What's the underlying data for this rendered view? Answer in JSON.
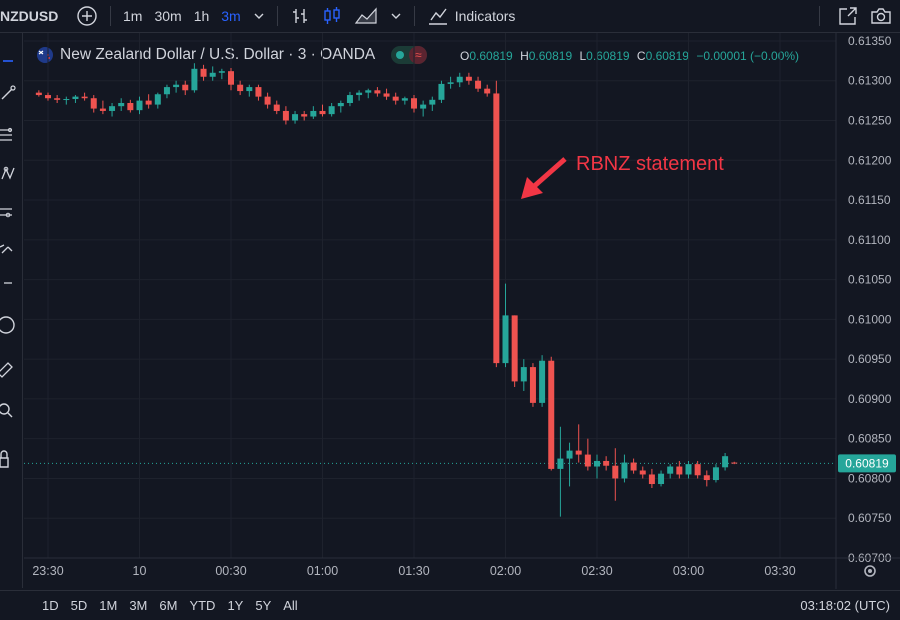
{
  "toolbar": {
    "symbol": "NZDUSD",
    "intervals": [
      "1m",
      "30m",
      "1h",
      "3m"
    ],
    "active_interval": "3m",
    "indicators_label": "Indicators"
  },
  "legend": {
    "title": "New Zealand Dollar / U.S. Dollar · 3 · OANDA",
    "o_label": "O",
    "o_value": "0.60819",
    "h_label": "H",
    "h_value": "0.60819",
    "l_label": "L",
    "l_value": "0.60819",
    "c_label": "C",
    "c_value": "0.60819",
    "change": "−0.00001 (−0.00%)"
  },
  "annotation": {
    "text": "RBNZ statement",
    "color": "#f23645"
  },
  "bottom": {
    "ranges": [
      "1D",
      "5D",
      "1M",
      "3M",
      "6M",
      "YTD",
      "1Y",
      "5Y",
      "All"
    ],
    "clock": "03:18:02 (UTC)"
  },
  "colors": {
    "up": "#26a69a",
    "down": "#ef5350",
    "background": "#131722",
    "grid": "#1e222d",
    "price_label_bg": "#26a69a",
    "annotation": "#f23645",
    "active": "#2962ff"
  },
  "chart_data": {
    "type": "candlestick",
    "interval_minutes": 3,
    "ylim": [
      0.607,
      0.6136
    ],
    "y_ticks": [
      "0.61350",
      "0.61300",
      "0.61250",
      "0.61200",
      "0.61150",
      "0.61100",
      "0.61050",
      "0.61000",
      "0.60950",
      "0.60900",
      "0.60850",
      "0.60800",
      "0.60750",
      "0.60700"
    ],
    "x_ticks": [
      "23:30",
      "10",
      "00:30",
      "01:00",
      "01:30",
      "02:00",
      "02:30",
      "03:00",
      "03:30"
    ],
    "last_price": "0.60819",
    "candles": [
      {
        "t": "23:27",
        "o": 0.61285,
        "h": 0.61288,
        "l": 0.6128,
        "c": 0.61282
      },
      {
        "t": "23:30",
        "o": 0.61282,
        "h": 0.61285,
        "l": 0.61275,
        "c": 0.61278
      },
      {
        "t": "23:33",
        "o": 0.61278,
        "h": 0.61282,
        "l": 0.61272,
        "c": 0.61276
      },
      {
        "t": "23:36",
        "o": 0.61276,
        "h": 0.6128,
        "l": 0.6127,
        "c": 0.61277
      },
      {
        "t": "23:39",
        "o": 0.61277,
        "h": 0.61282,
        "l": 0.61272,
        "c": 0.6128
      },
      {
        "t": "23:42",
        "o": 0.6128,
        "h": 0.61285,
        "l": 0.61275,
        "c": 0.61278
      },
      {
        "t": "23:45",
        "o": 0.61278,
        "h": 0.61282,
        "l": 0.6126,
        "c": 0.61265
      },
      {
        "t": "23:48",
        "o": 0.61265,
        "h": 0.61275,
        "l": 0.61258,
        "c": 0.61262
      },
      {
        "t": "23:51",
        "o": 0.61262,
        "h": 0.61272,
        "l": 0.61255,
        "c": 0.61268
      },
      {
        "t": "23:54",
        "o": 0.61268,
        "h": 0.61278,
        "l": 0.61262,
        "c": 0.61272
      },
      {
        "t": "23:57",
        "o": 0.61272,
        "h": 0.61276,
        "l": 0.6126,
        "c": 0.61263
      },
      {
        "t": "00:00",
        "o": 0.61263,
        "h": 0.6128,
        "l": 0.61258,
        "c": 0.61275
      },
      {
        "t": "00:03",
        "o": 0.61275,
        "h": 0.61283,
        "l": 0.61265,
        "c": 0.6127
      },
      {
        "t": "00:06",
        "o": 0.6127,
        "h": 0.61285,
        "l": 0.61265,
        "c": 0.61283
      },
      {
        "t": "00:09",
        "o": 0.61283,
        "h": 0.61295,
        "l": 0.61278,
        "c": 0.61292
      },
      {
        "t": "00:12",
        "o": 0.61292,
        "h": 0.613,
        "l": 0.61285,
        "c": 0.61295
      },
      {
        "t": "00:15",
        "o": 0.61295,
        "h": 0.613,
        "l": 0.61282,
        "c": 0.61288
      },
      {
        "t": "00:18",
        "o": 0.61288,
        "h": 0.61322,
        "l": 0.61285,
        "c": 0.61315
      },
      {
        "t": "00:21",
        "o": 0.61315,
        "h": 0.6132,
        "l": 0.613,
        "c": 0.61305
      },
      {
        "t": "00:24",
        "o": 0.61305,
        "h": 0.61318,
        "l": 0.613,
        "c": 0.6131
      },
      {
        "t": "00:27",
        "o": 0.6131,
        "h": 0.61315,
        "l": 0.61302,
        "c": 0.61312
      },
      {
        "t": "00:30",
        "o": 0.61312,
        "h": 0.61316,
        "l": 0.61288,
        "c": 0.61295
      },
      {
        "t": "00:33",
        "o": 0.61295,
        "h": 0.613,
        "l": 0.61282,
        "c": 0.61287
      },
      {
        "t": "00:36",
        "o": 0.61287,
        "h": 0.61295,
        "l": 0.6128,
        "c": 0.61292
      },
      {
        "t": "00:39",
        "o": 0.61292,
        "h": 0.61295,
        "l": 0.61275,
        "c": 0.6128
      },
      {
        "t": "00:42",
        "o": 0.6128,
        "h": 0.61285,
        "l": 0.61265,
        "c": 0.6127
      },
      {
        "t": "00:45",
        "o": 0.6127,
        "h": 0.61275,
        "l": 0.61258,
        "c": 0.61262
      },
      {
        "t": "00:48",
        "o": 0.61262,
        "h": 0.61268,
        "l": 0.61245,
        "c": 0.6125
      },
      {
        "t": "00:51",
        "o": 0.6125,
        "h": 0.61262,
        "l": 0.61246,
        "c": 0.61258
      },
      {
        "t": "00:54",
        "o": 0.61258,
        "h": 0.61262,
        "l": 0.6125,
        "c": 0.61255
      },
      {
        "t": "00:57",
        "o": 0.61255,
        "h": 0.61268,
        "l": 0.61252,
        "c": 0.61262
      },
      {
        "t": "01:00",
        "o": 0.61262,
        "h": 0.6127,
        "l": 0.61255,
        "c": 0.61258
      },
      {
        "t": "01:03",
        "o": 0.61258,
        "h": 0.61272,
        "l": 0.61255,
        "c": 0.61268
      },
      {
        "t": "01:06",
        "o": 0.61268,
        "h": 0.61275,
        "l": 0.6126,
        "c": 0.61272
      },
      {
        "t": "01:09",
        "o": 0.61272,
        "h": 0.61286,
        "l": 0.61268,
        "c": 0.61282
      },
      {
        "t": "01:12",
        "o": 0.61282,
        "h": 0.61288,
        "l": 0.61275,
        "c": 0.61285
      },
      {
        "t": "01:15",
        "o": 0.61285,
        "h": 0.6129,
        "l": 0.61278,
        "c": 0.61288
      },
      {
        "t": "01:18",
        "o": 0.61288,
        "h": 0.61292,
        "l": 0.6128,
        "c": 0.61284
      },
      {
        "t": "01:21",
        "o": 0.61284,
        "h": 0.6129,
        "l": 0.61276,
        "c": 0.6128
      },
      {
        "t": "01:24",
        "o": 0.6128,
        "h": 0.61285,
        "l": 0.6127,
        "c": 0.61275
      },
      {
        "t": "01:27",
        "o": 0.61275,
        "h": 0.6128,
        "l": 0.6127,
        "c": 0.61278
      },
      {
        "t": "01:30",
        "o": 0.61278,
        "h": 0.61282,
        "l": 0.6126,
        "c": 0.61265
      },
      {
        "t": "01:33",
        "o": 0.61265,
        "h": 0.61275,
        "l": 0.61255,
        "c": 0.6127
      },
      {
        "t": "01:36",
        "o": 0.6127,
        "h": 0.6128,
        "l": 0.61262,
        "c": 0.61276
      },
      {
        "t": "01:39",
        "o": 0.61276,
        "h": 0.613,
        "l": 0.61272,
        "c": 0.61296
      },
      {
        "t": "01:42",
        "o": 0.61296,
        "h": 0.61305,
        "l": 0.6129,
        "c": 0.61298
      },
      {
        "t": "01:45",
        "o": 0.61298,
        "h": 0.6131,
        "l": 0.61292,
        "c": 0.61305
      },
      {
        "t": "01:48",
        "o": 0.61305,
        "h": 0.6131,
        "l": 0.61295,
        "c": 0.613
      },
      {
        "t": "01:51",
        "o": 0.613,
        "h": 0.61305,
        "l": 0.61286,
        "c": 0.6129
      },
      {
        "t": "01:54",
        "o": 0.6129,
        "h": 0.61295,
        "l": 0.6128,
        "c": 0.61284
      },
      {
        "t": "01:57",
        "o": 0.61284,
        "h": 0.613,
        "l": 0.6094,
        "c": 0.60945
      },
      {
        "t": "02:00",
        "o": 0.60945,
        "h": 0.61045,
        "l": 0.6094,
        "c": 0.61005
      },
      {
        "t": "02:03",
        "o": 0.61005,
        "h": 0.61005,
        "l": 0.60915,
        "c": 0.60922
      },
      {
        "t": "02:06",
        "o": 0.60922,
        "h": 0.6095,
        "l": 0.6091,
        "c": 0.6094
      },
      {
        "t": "02:09",
        "o": 0.6094,
        "h": 0.60945,
        "l": 0.6089,
        "c": 0.60895
      },
      {
        "t": "02:12",
        "o": 0.60895,
        "h": 0.60955,
        "l": 0.6089,
        "c": 0.60948
      },
      {
        "t": "02:15",
        "o": 0.60948,
        "h": 0.60953,
        "l": 0.6081,
        "c": 0.60812
      },
      {
        "t": "02:18",
        "o": 0.60812,
        "h": 0.60865,
        "l": 0.60752,
        "c": 0.60825
      },
      {
        "t": "02:21",
        "o": 0.60825,
        "h": 0.60845,
        "l": 0.6079,
        "c": 0.60835
      },
      {
        "t": "02:24",
        "o": 0.60835,
        "h": 0.60868,
        "l": 0.6082,
        "c": 0.6083
      },
      {
        "t": "02:27",
        "o": 0.6083,
        "h": 0.6085,
        "l": 0.6081,
        "c": 0.60815
      },
      {
        "t": "02:30",
        "o": 0.60815,
        "h": 0.6083,
        "l": 0.608,
        "c": 0.60822
      },
      {
        "t": "02:33",
        "o": 0.60822,
        "h": 0.60828,
        "l": 0.6081,
        "c": 0.60816
      },
      {
        "t": "02:36",
        "o": 0.60816,
        "h": 0.60838,
        "l": 0.60772,
        "c": 0.608
      },
      {
        "t": "02:39",
        "o": 0.608,
        "h": 0.6083,
        "l": 0.60795,
        "c": 0.6082
      },
      {
        "t": "02:42",
        "o": 0.6082,
        "h": 0.60825,
        "l": 0.60806,
        "c": 0.6081
      },
      {
        "t": "02:45",
        "o": 0.6081,
        "h": 0.60815,
        "l": 0.608,
        "c": 0.60805
      },
      {
        "t": "02:48",
        "o": 0.60805,
        "h": 0.60812,
        "l": 0.60788,
        "c": 0.60793
      },
      {
        "t": "02:51",
        "o": 0.60793,
        "h": 0.6081,
        "l": 0.6079,
        "c": 0.60806
      },
      {
        "t": "02:54",
        "o": 0.60806,
        "h": 0.60818,
        "l": 0.608,
        "c": 0.60815
      },
      {
        "t": "02:57",
        "o": 0.60815,
        "h": 0.60822,
        "l": 0.608,
        "c": 0.60805
      },
      {
        "t": "03:00",
        "o": 0.60805,
        "h": 0.60822,
        "l": 0.608,
        "c": 0.60818
      },
      {
        "t": "03:03",
        "o": 0.60818,
        "h": 0.60822,
        "l": 0.608,
        "c": 0.60804
      },
      {
        "t": "03:06",
        "o": 0.60804,
        "h": 0.6081,
        "l": 0.6079,
        "c": 0.60798
      },
      {
        "t": "03:09",
        "o": 0.60798,
        "h": 0.60818,
        "l": 0.60795,
        "c": 0.60814
      },
      {
        "t": "03:12",
        "o": 0.60814,
        "h": 0.60832,
        "l": 0.6081,
        "c": 0.60828
      },
      {
        "t": "03:15",
        "o": 0.6082,
        "h": 0.60821,
        "l": 0.60818,
        "c": 0.60819
      }
    ]
  }
}
